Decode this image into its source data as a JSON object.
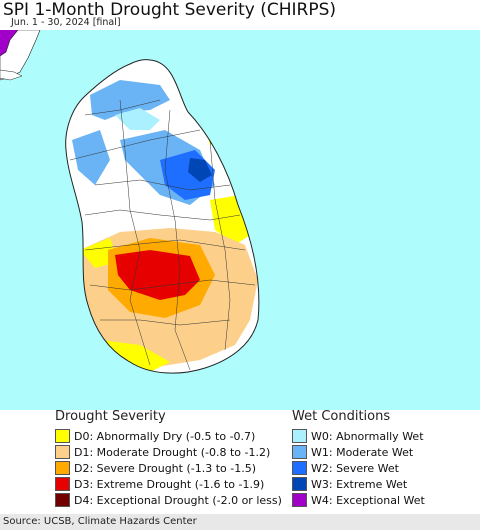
{
  "title": "SPI 1-Month Drought Severity (CHIRPS)",
  "subtitle": "Jun. 1 - 30, 2024 [final]",
  "drought_legend": {
    "heading": "Drought Severity",
    "items": [
      {
        "label": "D0: Abnormally Dry (-0.5 to -0.7)",
        "color": "#ffff00"
      },
      {
        "label": "D1: Moderate Drought (-0.8 to -1.2)",
        "color": "#fcd08a"
      },
      {
        "label": "D2: Severe Drought (-1.3 to -1.5)",
        "color": "#ffaa00"
      },
      {
        "label": "D3: Extreme Drought (-1.6 to -1.9)",
        "color": "#e60000"
      },
      {
        "label": "D4: Exceptional Drought (-2.0 or less)",
        "color": "#730000"
      }
    ]
  },
  "wet_legend": {
    "heading": "Wet Conditions",
    "items": [
      {
        "label": "W0: Abnormally Wet",
        "color": "#aaf0ff"
      },
      {
        "label": "W1: Moderate Wet",
        "color": "#6ab4f5"
      },
      {
        "label": "W2: Severe Wet",
        "color": "#1e6eff"
      },
      {
        "label": "W3: Extreme Wet",
        "color": "#0046b4"
      },
      {
        "label": "W4: Exceptional Wet",
        "color": "#a000c8"
      }
    ]
  },
  "source": "Source: UCSB, Climate Hazards Center",
  "map": {
    "sea_color": "#aefcfc",
    "land_color": "#ffffff"
  }
}
